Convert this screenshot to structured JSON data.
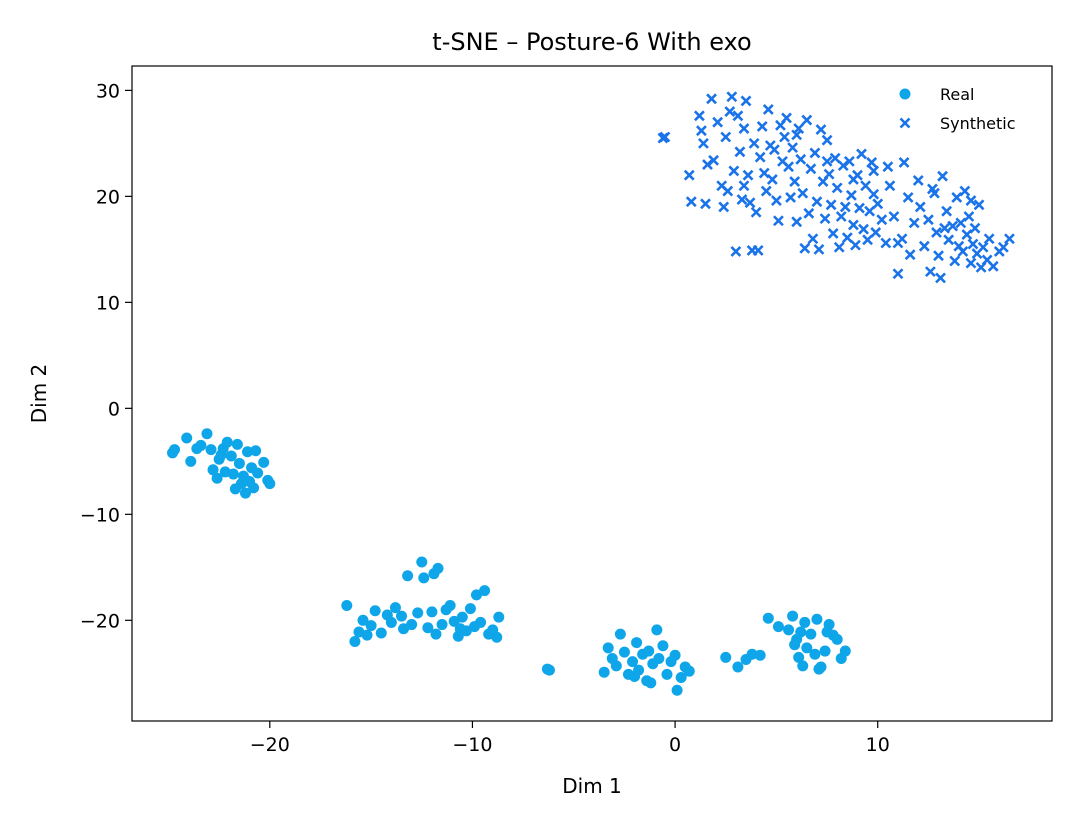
{
  "chart_data": {
    "type": "scatter",
    "title": "t-SNE – Posture-6 With exo",
    "xlabel": "Dim 1",
    "ylabel": "Dim 2",
    "xlim": [
      -26.8,
      18.6
    ],
    "ylim": [
      -29.5,
      32.3
    ],
    "xticks": [
      {
        "value": -20,
        "label": "−20"
      },
      {
        "value": -10,
        "label": "−10"
      },
      {
        "value": 0,
        "label": "0"
      },
      {
        "value": 10,
        "label": "10"
      }
    ],
    "yticks": [
      {
        "value": -20,
        "label": "−20"
      },
      {
        "value": -10,
        "label": "−10"
      },
      {
        "value": 0,
        "label": "0"
      },
      {
        "value": 10,
        "label": "10"
      },
      {
        "value": 20,
        "label": "20"
      },
      {
        "value": 30,
        "label": "30"
      }
    ],
    "grid": false,
    "legend_position": "top-right",
    "series": [
      {
        "name": "Real",
        "marker": "circle",
        "color": "#0ea5e9",
        "points": [
          [
            -24.8,
            -4.2
          ],
          [
            -24.7,
            -3.9
          ],
          [
            -24.1,
            -2.8
          ],
          [
            -23.9,
            -5.0
          ],
          [
            -23.6,
            -3.8
          ],
          [
            -23.4,
            -3.5
          ],
          [
            -23.1,
            -2.4
          ],
          [
            -22.9,
            -3.9
          ],
          [
            -22.8,
            -5.8
          ],
          [
            -22.6,
            -6.6
          ],
          [
            -22.5,
            -4.8
          ],
          [
            -22.3,
            -3.8
          ],
          [
            -22.2,
            -6.0
          ],
          [
            -22.1,
            -3.2
          ],
          [
            -21.9,
            -4.5
          ],
          [
            -21.8,
            -6.2
          ],
          [
            -21.7,
            -7.6
          ],
          [
            -21.6,
            -3.4
          ],
          [
            -21.5,
            -5.2
          ],
          [
            -21.4,
            -7.1
          ],
          [
            -21.3,
            -6.4
          ],
          [
            -21.2,
            -8.0
          ],
          [
            -21.1,
            -4.1
          ],
          [
            -21.0,
            -6.9
          ],
          [
            -20.9,
            -5.6
          ],
          [
            -20.8,
            -7.5
          ],
          [
            -20.7,
            -4.0
          ],
          [
            -20.6,
            -6.1
          ],
          [
            -20.3,
            -5.1
          ],
          [
            -20.1,
            -6.8
          ],
          [
            -20.0,
            -7.1
          ],
          [
            -22.4,
            -4.4
          ],
          [
            -16.2,
            -18.6
          ],
          [
            -15.8,
            -22.0
          ],
          [
            -15.6,
            -21.1
          ],
          [
            -15.4,
            -20.0
          ],
          [
            -15.0,
            -20.5
          ],
          [
            -14.8,
            -19.1
          ],
          [
            -14.5,
            -21.2
          ],
          [
            -14.2,
            -19.5
          ],
          [
            -14.0,
            -20.2
          ],
          [
            -13.8,
            -18.8
          ],
          [
            -13.5,
            -19.6
          ],
          [
            -13.2,
            -15.8
          ],
          [
            -13.0,
            -20.4
          ],
          [
            -12.7,
            -19.3
          ],
          [
            -12.5,
            -14.5
          ],
          [
            -12.4,
            -16.0
          ],
          [
            -12.2,
            -20.7
          ],
          [
            -12.0,
            -19.2
          ],
          [
            -11.8,
            -21.3
          ],
          [
            -11.7,
            -15.1
          ],
          [
            -11.5,
            -20.4
          ],
          [
            -11.3,
            -19.0
          ],
          [
            -11.1,
            -18.6
          ],
          [
            -10.9,
            -20.1
          ],
          [
            -10.7,
            -21.5
          ],
          [
            -10.5,
            -19.7
          ],
          [
            -10.3,
            -21.0
          ],
          [
            -10.1,
            -18.9
          ],
          [
            -9.9,
            -20.6
          ],
          [
            -9.8,
            -17.6
          ],
          [
            -9.6,
            -20.2
          ],
          [
            -9.4,
            -17.2
          ],
          [
            -9.2,
            -21.3
          ],
          [
            -9.0,
            -20.9
          ],
          [
            -8.8,
            -21.6
          ],
          [
            -8.7,
            -19.7
          ],
          [
            -11.9,
            -15.6
          ],
          [
            -13.4,
            -20.8
          ],
          [
            -15.2,
            -21.4
          ],
          [
            -10.6,
            -20.8
          ],
          [
            -6.3,
            -24.6
          ],
          [
            -6.2,
            -24.7
          ],
          [
            -3.5,
            -24.9
          ],
          [
            -3.3,
            -22.6
          ],
          [
            -3.1,
            -23.6
          ],
          [
            -2.9,
            -24.3
          ],
          [
            -2.7,
            -21.3
          ],
          [
            -2.5,
            -23.0
          ],
          [
            -2.3,
            -25.1
          ],
          [
            -2.1,
            -23.9
          ],
          [
            -1.9,
            -22.1
          ],
          [
            -1.8,
            -24.7
          ],
          [
            -1.6,
            -23.2
          ],
          [
            -1.4,
            -25.7
          ],
          [
            -1.3,
            -22.9
          ],
          [
            -1.1,
            -24.1
          ],
          [
            -0.9,
            -20.9
          ],
          [
            -0.8,
            -23.6
          ],
          [
            -0.6,
            -22.4
          ],
          [
            -0.4,
            -25.1
          ],
          [
            -0.2,
            -23.9
          ],
          [
            0.0,
            -23.3
          ],
          [
            0.1,
            -26.6
          ],
          [
            0.3,
            -25.4
          ],
          [
            0.5,
            -24.4
          ],
          [
            0.7,
            -24.8
          ],
          [
            -2.0,
            -25.3
          ],
          [
            -1.2,
            -25.9
          ],
          [
            2.5,
            -23.5
          ],
          [
            3.1,
            -24.4
          ],
          [
            3.5,
            -23.7
          ],
          [
            3.8,
            -23.2
          ],
          [
            4.2,
            -23.3
          ],
          [
            4.6,
            -19.8
          ],
          [
            5.1,
            -20.6
          ],
          [
            5.6,
            -20.9
          ],
          [
            5.8,
            -19.6
          ],
          [
            6.0,
            -21.8
          ],
          [
            6.1,
            -23.5
          ],
          [
            6.3,
            -24.3
          ],
          [
            6.4,
            -20.2
          ],
          [
            6.5,
            -22.6
          ],
          [
            6.7,
            -21.3
          ],
          [
            6.9,
            -23.2
          ],
          [
            7.0,
            -19.9
          ],
          [
            7.2,
            -24.4
          ],
          [
            7.4,
            -22.9
          ],
          [
            7.6,
            -20.4
          ],
          [
            7.8,
            -21.4
          ],
          [
            8.0,
            -21.8
          ],
          [
            8.2,
            -23.6
          ],
          [
            8.4,
            -22.9
          ],
          [
            6.2,
            -21.1
          ],
          [
            7.1,
            -24.6
          ],
          [
            5.9,
            -22.3
          ],
          [
            7.5,
            -21.1
          ]
        ]
      },
      {
        "name": "Synthetic",
        "marker": "x",
        "color": "#1a73e8",
        "points": [
          [
            -0.6,
            25.5
          ],
          [
            -0.5,
            25.6
          ],
          [
            0.7,
            22.0
          ],
          [
            0.8,
            19.5
          ],
          [
            1.2,
            27.6
          ],
          [
            1.3,
            26.2
          ],
          [
            1.5,
            19.3
          ],
          [
            1.6,
            23.0
          ],
          [
            1.8,
            29.2
          ],
          [
            1.9,
            23.4
          ],
          [
            2.1,
            27.0
          ],
          [
            2.3,
            21.0
          ],
          [
            2.4,
            19.0
          ],
          [
            2.5,
            25.6
          ],
          [
            2.6,
            20.5
          ],
          [
            2.8,
            29.4
          ],
          [
            2.9,
            22.4
          ],
          [
            3.0,
            14.8
          ],
          [
            3.1,
            27.6
          ],
          [
            3.2,
            24.2
          ],
          [
            3.3,
            19.7
          ],
          [
            3.4,
            26.4
          ],
          [
            3.5,
            29.0
          ],
          [
            3.6,
            22.0
          ],
          [
            3.7,
            19.4
          ],
          [
            3.8,
            14.9
          ],
          [
            3.9,
            25.0
          ],
          [
            4.0,
            18.5
          ],
          [
            4.1,
            14.9
          ],
          [
            4.2,
            23.7
          ],
          [
            4.3,
            26.6
          ],
          [
            4.4,
            22.2
          ],
          [
            4.5,
            20.5
          ],
          [
            4.6,
            28.2
          ],
          [
            4.7,
            24.8
          ],
          [
            4.8,
            21.6
          ],
          [
            5.0,
            19.6
          ],
          [
            5.1,
            17.7
          ],
          [
            5.3,
            23.3
          ],
          [
            5.4,
            25.6
          ],
          [
            5.5,
            27.4
          ],
          [
            5.6,
            22.8
          ],
          [
            5.7,
            19.9
          ],
          [
            5.8,
            24.6
          ],
          [
            5.9,
            21.4
          ],
          [
            6.0,
            17.6
          ],
          [
            6.1,
            26.4
          ],
          [
            6.2,
            23.5
          ],
          [
            6.3,
            20.3
          ],
          [
            6.4,
            15.1
          ],
          [
            6.5,
            27.2
          ],
          [
            6.6,
            18.4
          ],
          [
            6.7,
            22.6
          ],
          [
            6.8,
            16.0
          ],
          [
            6.9,
            24.1
          ],
          [
            7.0,
            19.5
          ],
          [
            7.1,
            15.0
          ],
          [
            7.2,
            26.3
          ],
          [
            7.3,
            21.4
          ],
          [
            7.4,
            17.9
          ],
          [
            7.5,
            25.3
          ],
          [
            7.6,
            22.1
          ],
          [
            7.7,
            19.2
          ],
          [
            7.8,
            16.5
          ],
          [
            7.9,
            23.6
          ],
          [
            8.0,
            20.8
          ],
          [
            8.1,
            15.2
          ],
          [
            8.2,
            18.1
          ],
          [
            8.3,
            22.9
          ],
          [
            8.4,
            19.0
          ],
          [
            8.5,
            16.1
          ],
          [
            8.6,
            23.3
          ],
          [
            8.7,
            20.1
          ],
          [
            8.8,
            17.3
          ],
          [
            8.9,
            15.4
          ],
          [
            9.0,
            22.0
          ],
          [
            9.1,
            18.9
          ],
          [
            9.2,
            24.0
          ],
          [
            9.3,
            16.9
          ],
          [
            9.4,
            21.0
          ],
          [
            9.5,
            15.9
          ],
          [
            9.6,
            18.6
          ],
          [
            9.7,
            23.2
          ],
          [
            9.8,
            20.2
          ],
          [
            9.9,
            16.6
          ],
          [
            10.0,
            19.3
          ],
          [
            10.2,
            17.8
          ],
          [
            10.4,
            15.6
          ],
          [
            10.6,
            21.0
          ],
          [
            10.8,
            18.1
          ],
          [
            11.0,
            12.7
          ],
          [
            11.2,
            16.0
          ],
          [
            11.3,
            23.2
          ],
          [
            11.5,
            19.9
          ],
          [
            11.6,
            14.5
          ],
          [
            11.8,
            17.5
          ],
          [
            12.0,
            21.5
          ],
          [
            12.1,
            19.0
          ],
          [
            12.3,
            15.3
          ],
          [
            12.5,
            17.8
          ],
          [
            12.6,
            12.9
          ],
          [
            12.8,
            20.3
          ],
          [
            12.9,
            16.6
          ],
          [
            13.0,
            14.4
          ],
          [
            13.1,
            12.3
          ],
          [
            13.2,
            21.9
          ],
          [
            13.4,
            18.6
          ],
          [
            13.5,
            15.9
          ],
          [
            13.7,
            17.2
          ],
          [
            13.8,
            13.9
          ],
          [
            13.9,
            19.9
          ],
          [
            14.0,
            15.3
          ],
          [
            14.1,
            17.5
          ],
          [
            14.2,
            14.8
          ],
          [
            14.3,
            20.5
          ],
          [
            14.4,
            16.4
          ],
          [
            14.5,
            18.1
          ],
          [
            14.6,
            13.7
          ],
          [
            14.7,
            15.5
          ],
          [
            14.8,
            17.0
          ],
          [
            14.9,
            14.6
          ],
          [
            15.0,
            19.2
          ],
          [
            15.1,
            13.3
          ],
          [
            15.2,
            15.2
          ],
          [
            15.4,
            14.0
          ],
          [
            15.5,
            16.0
          ],
          [
            15.7,
            13.4
          ],
          [
            16.0,
            14.8
          ],
          [
            16.2,
            15.2
          ],
          [
            16.5,
            16.0
          ],
          [
            2.7,
            28.0
          ],
          [
            3.4,
            21.0
          ],
          [
            4.9,
            24.4
          ],
          [
            6.0,
            25.8
          ],
          [
            7.5,
            23.3
          ],
          [
            9.8,
            22.4
          ],
          [
            11.0,
            15.6
          ],
          [
            12.7,
            20.7
          ],
          [
            13.3,
            17.0
          ],
          [
            14.6,
            19.6
          ],
          [
            5.2,
            26.7
          ],
          [
            8.8,
            21.6
          ],
          [
            10.5,
            22.8
          ],
          [
            1.4,
            25.0
          ]
        ]
      }
    ]
  }
}
